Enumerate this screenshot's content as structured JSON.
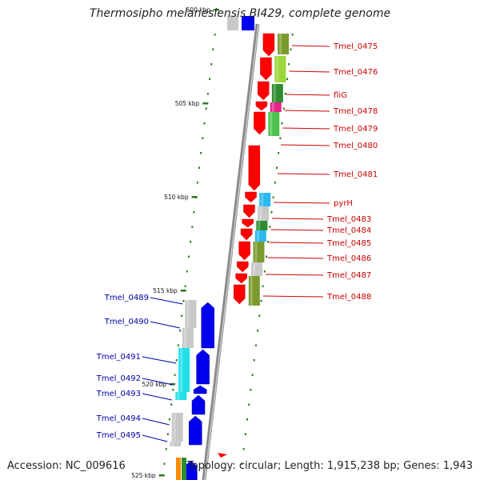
{
  "title": "Thermosipho melanesiensis BI429, complete genome",
  "footer": {
    "accession": "Accession: NC_009616",
    "summary": "Topology: circular; Length: 1,915,238 bp; Genes: 1,943"
  },
  "scale": {
    "ticks": [
      "500 kbp",
      "505 kbp",
      "510 kbp",
      "515 kbp",
      "520 kbp",
      "525 kbp"
    ]
  },
  "genes_forward": [
    {
      "name": "Tmel_0475",
      "color": "#7a9a2e"
    },
    {
      "name": "Tmel_0476",
      "color": "#9bd63a"
    },
    {
      "name": "fliG",
      "color": "#2e8b2e"
    },
    {
      "name": "Tmel_0478",
      "color": "#e8228c"
    },
    {
      "name": "Tmel_0479",
      "color": "#4cc24c"
    },
    {
      "name": "Tmel_0480",
      "color": "#ff0000"
    },
    {
      "name": "Tmel_0481",
      "color": "#ff0000"
    },
    {
      "name": "pyrH",
      "color": "#2ab8f0"
    },
    {
      "name": "Tmel_0483",
      "color": "#c8c8c8"
    },
    {
      "name": "Tmel_0484",
      "color": "#2e8b2e"
    },
    {
      "name": "Tmel_0485",
      "color": "#2ab8f0"
    },
    {
      "name": "Tmel_0486",
      "color": "#7a9a2e"
    },
    {
      "name": "Tmel_0487",
      "color": "#c8c8c8"
    },
    {
      "name": "Tmel_0488",
      "color": "#7a9a2e"
    }
  ],
  "genes_reverse": [
    {
      "name": "Tmel_0489",
      "color": "#c8c8c8"
    },
    {
      "name": "Tmel_0490",
      "color": "#c8c8c8"
    },
    {
      "name": "Tmel_0491",
      "color": "#22e0e8"
    },
    {
      "name": "Tmel_0492",
      "color": "#22e0e8"
    },
    {
      "name": "Tmel_0493",
      "color": "#0000ee"
    },
    {
      "name": "Tmel_0494",
      "color": "#c8c8c8"
    },
    {
      "name": "Tmel_0495",
      "color": "#c8c8c8"
    }
  ],
  "colors": {
    "forward_cds": "#ff0000",
    "reverse_cds": "#0000ee",
    "backbone": "#8a8a8a",
    "tick": "#2a7a1a",
    "label_forward": "#cc0000",
    "label_reverse": "#0000aa"
  }
}
